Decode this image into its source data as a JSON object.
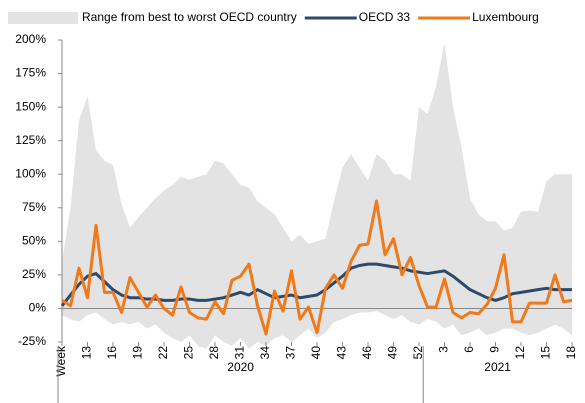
{
  "chart_data": {
    "type": "line",
    "categories": [
      "Week",
      null,
      null,
      "13",
      null,
      null,
      "16",
      null,
      null,
      "19",
      null,
      null,
      "22",
      null,
      null,
      "25",
      null,
      null,
      "28",
      null,
      null,
      "31",
      null,
      null,
      "34",
      null,
      null,
      "37",
      null,
      null,
      "40",
      null,
      null,
      "43",
      null,
      null,
      "46",
      null,
      null,
      "49",
      null,
      null,
      "52",
      null,
      null,
      "3",
      null,
      null,
      "6",
      null,
      null,
      "9",
      null,
      null,
      "12",
      null,
      null,
      "15",
      null,
      null,
      "18"
    ],
    "x_groups": [
      {
        "label": "2020",
        "count": 43
      },
      {
        "label": "2021",
        "count": 18
      }
    ],
    "series": [
      {
        "name": "Range from best to worst OECD country",
        "type": "band",
        "color": "#e3e3e3",
        "values": [
          35,
          75,
          140,
          158,
          118,
          110,
          107,
          78,
          60,
          68,
          75,
          82,
          88,
          92,
          98,
          96,
          98,
          100,
          110,
          108,
          100,
          92,
          90,
          80,
          75,
          70,
          60,
          50,
          55,
          48,
          50,
          52,
          80,
          105,
          115,
          105,
          95,
          115,
          110,
          100,
          100,
          95,
          150,
          145,
          165,
          198,
          150,
          120,
          82,
          70,
          65,
          65,
          58,
          60,
          72,
          73,
          72,
          95,
          100,
          100,
          100
        ],
        "lower": [
          -5,
          -8,
          -10,
          -5,
          -3,
          -8,
          -12,
          -10,
          -12,
          -10,
          -15,
          -12,
          -18,
          -22,
          -25,
          -20,
          -28,
          -30,
          -20,
          -25,
          -28,
          -22,
          -30,
          -25,
          -28,
          -22,
          -20,
          -25,
          -20,
          -15,
          -22,
          -18,
          -10,
          -8,
          -5,
          -3,
          -3,
          -2,
          -5,
          -8,
          -5,
          -10,
          -12,
          -8,
          -10,
          -15,
          -12,
          -20,
          -18,
          -15,
          -20,
          -18,
          -15,
          -15,
          -18,
          -20,
          -18,
          -15,
          -12,
          -15,
          -20
        ]
      },
      {
        "name": "OECD 33",
        "type": "line",
        "color": "#2e4a6b",
        "values": [
          2,
          10,
          18,
          24,
          26,
          20,
          14,
          10,
          8,
          8,
          7,
          7,
          6,
          6,
          7,
          7,
          6,
          6,
          7,
          8,
          10,
          12,
          10,
          14,
          11,
          8,
          9,
          10,
          8,
          9,
          10,
          14,
          19,
          24,
          30,
          32,
          33,
          33,
          32,
          31,
          30,
          28,
          27,
          26,
          27,
          28,
          24,
          19,
          14,
          11,
          8,
          6,
          8,
          11,
          12,
          13,
          14,
          15,
          14,
          14,
          14
        ]
      },
      {
        "name": "Luxembourg",
        "type": "line",
        "color": "#f07a1a",
        "values": [
          6,
          2,
          30,
          8,
          62,
          12,
          12,
          -3,
          23,
          12,
          1,
          10,
          0,
          -5,
          16,
          -3,
          -7,
          -8,
          5,
          -4,
          21,
          24,
          33,
          2,
          -19,
          13,
          -2,
          28,
          -8,
          1,
          -18,
          15,
          25,
          15,
          35,
          47,
          48,
          80,
          40,
          52,
          25,
          38,
          17,
          1,
          1,
          22,
          -3,
          -7,
          -3,
          -4,
          3,
          15,
          40,
          -10,
          -10,
          4,
          4,
          4,
          25,
          5,
          6
        ]
      }
    ],
    "ylim": [
      -25,
      200
    ],
    "yticks": [
      {
        "value": -25,
        "label": "-25%"
      },
      {
        "value": 0,
        "label": "0%"
      },
      {
        "value": 25,
        "label": "25%"
      },
      {
        "value": 50,
        "label": "50%"
      },
      {
        "value": 75,
        "label": "75%"
      },
      {
        "value": 100,
        "label": "100%"
      },
      {
        "value": 125,
        "label": "125%"
      },
      {
        "value": 150,
        "label": "150%"
      },
      {
        "value": 175,
        "label": "175%"
      },
      {
        "value": 200,
        "label": "200%"
      }
    ],
    "legend": "top"
  }
}
